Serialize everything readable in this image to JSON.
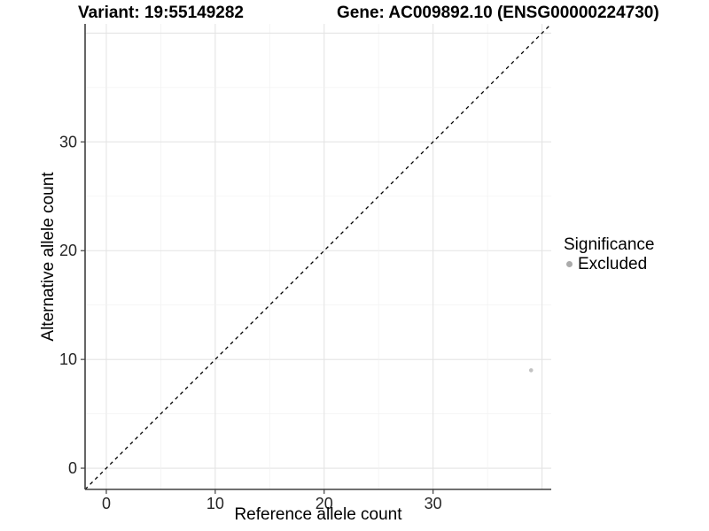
{
  "chart_data": {
    "type": "scatter",
    "title_left": "Variant: 19:55149282",
    "title_right": "Gene: AC009892.10 (ENSG00000224730)",
    "xlabel": "Reference allele count",
    "ylabel": "Alternative allele count",
    "x_ticks": [
      0,
      10,
      20,
      30
    ],
    "y_ticks": [
      0,
      10,
      20,
      30
    ],
    "xlim": [
      -1.95,
      40.85
    ],
    "ylim": [
      -1.95,
      40.85
    ],
    "grid": {
      "major_every": 10,
      "minor_every": 5,
      "major_color": "#E4E4E4",
      "minor_color": "#F1F1F1"
    },
    "identity_line": {
      "slope": 1,
      "intercept": 0,
      "style": "dashed",
      "color": "#000000"
    },
    "series": [
      {
        "name": "Excluded",
        "color": "#C2C2C2",
        "points": [
          {
            "x": 39,
            "y": 9
          }
        ]
      }
    ],
    "legend": {
      "title": "Significance",
      "position": "right",
      "entries": [
        {
          "label": "Excluded",
          "marker": "circle",
          "color": "#ABABAB"
        }
      ]
    },
    "colors": {
      "background": "#FFFFFF",
      "axis_line": "#404040",
      "tick_label": "#262626",
      "title_text": "#000000"
    }
  }
}
